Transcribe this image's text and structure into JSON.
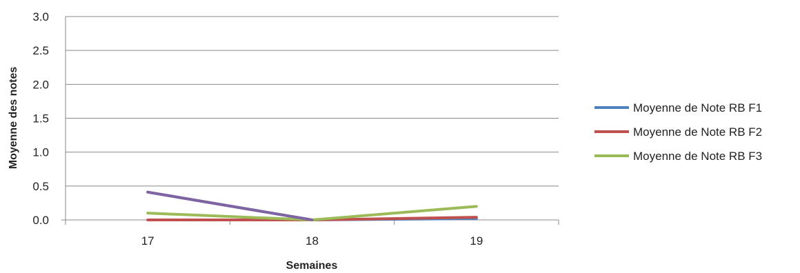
{
  "chart_data": {
    "type": "line",
    "title": "",
    "xlabel": "Semaines",
    "ylabel": "Moyenne des notes",
    "categories": [
      "17",
      "18",
      "19"
    ],
    "ylim": [
      0,
      3.0
    ],
    "yticks": [
      "0.0",
      "0.5",
      "1.0",
      "1.5",
      "2.0",
      "2.5",
      "3.0"
    ],
    "grid": true,
    "legend_position": "right",
    "series": [
      {
        "name": "Moyenne de Note RB F1",
        "color": "#4F81BD",
        "values": [
          0.41,
          0.0,
          0.02
        ]
      },
      {
        "name": "Moyenne de Note RB F2",
        "color": "#C0504D",
        "values": [
          0.0,
          0.0,
          0.04
        ]
      },
      {
        "name": "Moyenne de Note RB F3",
        "color": "#9BBB59",
        "values": [
          0.1,
          0.0,
          0.2
        ]
      }
    ],
    "overlay_color": "#8064A2"
  }
}
